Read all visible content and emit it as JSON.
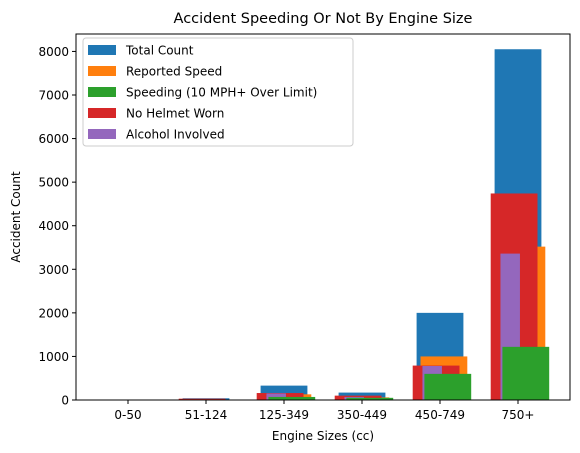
{
  "chart_data": {
    "type": "bar",
    "title": "Accident Speeding Or Not By Engine Size",
    "xlabel": "Engine Sizes (cc)",
    "ylabel": "Accident Count",
    "ylim": [
      0,
      8400
    ],
    "yticks": [
      0,
      1000,
      2000,
      3000,
      4000,
      5000,
      6000,
      7000,
      8000
    ],
    "grid": false,
    "legend_position": "upper-left",
    "categories": [
      "0-50",
      "51-124",
      "125-349",
      "350-449",
      "450-749",
      "750+"
    ],
    "series": [
      {
        "name": "Total Count",
        "color": "#1f77b4",
        "values": [
          5,
          40,
          330,
          170,
          2000,
          8050
        ]
      },
      {
        "name": "Reported Speed",
        "color": "#ff7f0e",
        "values": [
          0,
          10,
          130,
          60,
          1000,
          3520
        ]
      },
      {
        "name": "Speeding (10 MPH+ Over Limit)",
        "color": "#2ca02c",
        "values": [
          0,
          5,
          70,
          50,
          600,
          1220
        ]
      },
      {
        "name": "No Helmet Worn",
        "color": "#d62728",
        "values": [
          0,
          30,
          160,
          100,
          790,
          4740
        ]
      },
      {
        "name": "Alcohol Involved",
        "color": "#9467bd",
        "values": [
          0,
          10,
          150,
          70,
          780,
          3360
        ]
      }
    ]
  }
}
